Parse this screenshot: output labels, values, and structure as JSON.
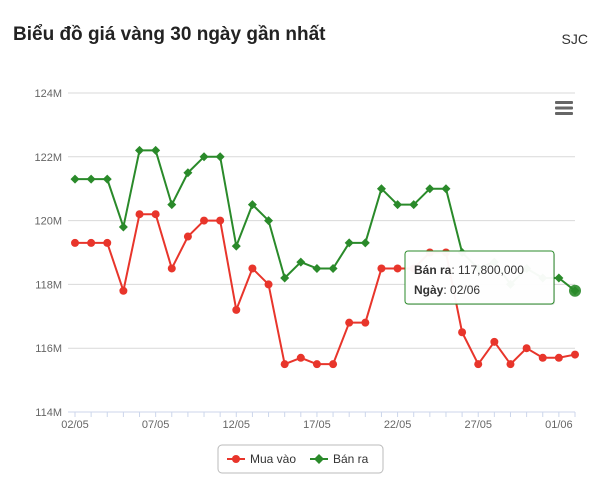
{
  "header": {
    "title": "Biểu đồ giá vàng 30 ngày gần nhất",
    "brand": "SJC"
  },
  "colors": {
    "buy": "#e8352b",
    "sell": "#2a8a2a",
    "grid": "#d9d9d9",
    "axis_text": "#666666",
    "tooltip_border": "#2a8a2a"
  },
  "icons": {
    "menu": "hamburger-menu-icon"
  },
  "chart_data": {
    "type": "line",
    "title": "",
    "xlabel": "",
    "ylabel": "",
    "ylim": [
      114,
      124
    ],
    "y_ticks": [
      114,
      116,
      118,
      120,
      122,
      124
    ],
    "y_tick_labels": [
      "114M",
      "116M",
      "118M",
      "120M",
      "122M",
      "124M"
    ],
    "x": [
      "02/05",
      "03/05",
      "04/05",
      "05/05",
      "06/05",
      "07/05",
      "08/05",
      "09/05",
      "10/05",
      "11/05",
      "12/05",
      "13/05",
      "14/05",
      "15/05",
      "16/05",
      "17/05",
      "18/05",
      "19/05",
      "20/05",
      "21/05",
      "22/05",
      "23/05",
      "24/05",
      "25/05",
      "26/05",
      "27/05",
      "28/05",
      "29/05",
      "30/05",
      "31/05",
      "01/06",
      "02/06"
    ],
    "x_tick_labels": [
      {
        "index": 0,
        "label": "02/05"
      },
      {
        "index": 5,
        "label": "07/05"
      },
      {
        "index": 10,
        "label": "12/05"
      },
      {
        "index": 15,
        "label": "17/05"
      },
      {
        "index": 20,
        "label": "22/05"
      },
      {
        "index": 25,
        "label": "27/05"
      },
      {
        "index": 30,
        "label": "01/06"
      }
    ],
    "series": [
      {
        "name": "Mua vào",
        "color": "#e8352b",
        "marker": "circle",
        "values": [
          119.3,
          119.3,
          119.3,
          117.8,
          120.2,
          120.2,
          118.5,
          119.5,
          120.0,
          120.0,
          117.2,
          118.5,
          118.0,
          115.5,
          115.7,
          115.5,
          115.5,
          116.8,
          116.8,
          118.5,
          118.5,
          118.5,
          119.0,
          119.0,
          116.5,
          115.5,
          116.2,
          115.5,
          116.0,
          115.7,
          115.7,
          115.8
        ]
      },
      {
        "name": "Bán ra",
        "color": "#2a8a2a",
        "marker": "diamond",
        "values": [
          121.3,
          121.3,
          121.3,
          119.8,
          122.2,
          122.2,
          120.5,
          121.5,
          122.0,
          122.0,
          119.2,
          120.5,
          120.0,
          118.2,
          118.7,
          118.5,
          118.5,
          119.3,
          119.3,
          121.0,
          120.5,
          120.5,
          121.0,
          121.0,
          119.0,
          118.5,
          118.7,
          118.0,
          118.5,
          118.2,
          118.2,
          117.8
        ]
      }
    ],
    "legend": {
      "placement": "bottom-center"
    },
    "grid": true,
    "tooltip": {
      "series_label": "Bán ra",
      "value_text": "117,800,000",
      "date_label": "Ngày",
      "date_value": "02/06",
      "point_index": 31,
      "series_index": 1
    }
  }
}
